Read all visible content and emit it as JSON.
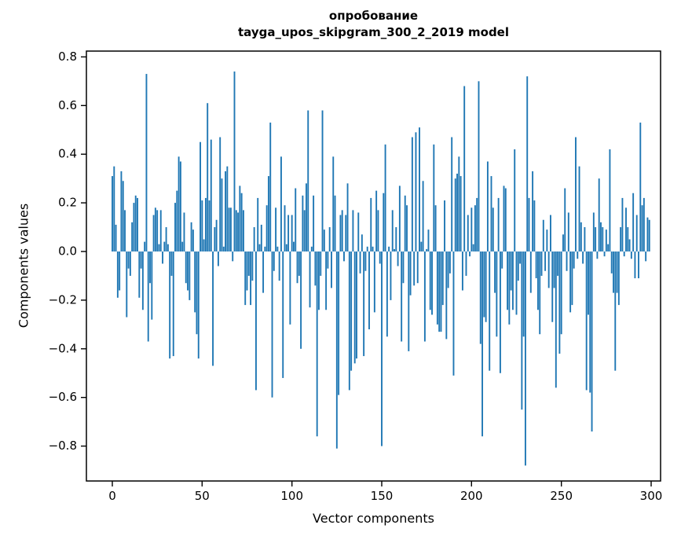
{
  "chart_data": {
    "type": "bar",
    "title_line1": "опробование",
    "title_line2": "tayga_upos_skipgram_300_2_2019 model",
    "xlabel": "Vector components",
    "ylabel": "Components values",
    "bar_color": "#1f77b4",
    "axis_color": "#000000",
    "xlim": [
      -15,
      305
    ],
    "ylim": [
      -0.94,
      0.83
    ],
    "grid": false,
    "legend": "none",
    "yticks": [
      0.8,
      0.6,
      0.4,
      0.2,
      0.0,
      -0.2,
      -0.4,
      -0.6,
      -0.8
    ],
    "ytick_labels": [
      "0.8",
      "0.6",
      "0.4",
      "0.2",
      "0.0",
      "−0.2",
      "−0.4",
      "−0.6",
      "−0.8"
    ],
    "xticks": [
      0,
      50,
      100,
      150,
      200,
      250,
      300
    ],
    "xtick_labels": [
      "0",
      "50",
      "100",
      "150",
      "200",
      "250",
      "300"
    ],
    "values": [
      0.31,
      0.35,
      0.11,
      -0.19,
      -0.16,
      0.33,
      0.29,
      0.17,
      -0.27,
      -0.07,
      -0.1,
      0.12,
      0.2,
      0.23,
      0.22,
      -0.19,
      -0.07,
      -0.24,
      0.04,
      0.73,
      -0.37,
      -0.13,
      -0.28,
      0.15,
      0.18,
      0.17,
      0.03,
      0.17,
      -0.05,
      0.04,
      0.1,
      0.03,
      -0.44,
      -0.1,
      -0.43,
      0.2,
      0.25,
      0.39,
      0.37,
      0.04,
      0.16,
      -0.13,
      -0.16,
      -0.2,
      0.12,
      0.09,
      -0.25,
      -0.34,
      -0.44,
      0.45,
      0.21,
      0.05,
      0.22,
      0.61,
      0.21,
      0.46,
      -0.47,
      0.1,
      0.13,
      -0.06,
      0.47,
      0.3,
      0.02,
      0.33,
      0.35,
      0.18,
      0.18,
      -0.04,
      0.74,
      0.17,
      0.16,
      0.27,
      0.24,
      0.17,
      -0.22,
      -0.16,
      -0.1,
      -0.22,
      -0.12,
      0.1,
      -0.57,
      0.22,
      0.03,
      0.11,
      -0.17,
      0.02,
      0.19,
      0.31,
      0.53,
      -0.6,
      -0.08,
      0.18,
      0.02,
      -0.12,
      0.39,
      -0.52,
      0.19,
      0.03,
      0.15,
      -0.3,
      0.15,
      0.04,
      0.26,
      -0.13,
      -0.1,
      -0.4,
      0.23,
      0.17,
      0.28,
      0.58,
      -0.23,
      0.02,
      0.23,
      -0.14,
      -0.76,
      -0.24,
      -0.1,
      0.58,
      0.09,
      -0.24,
      -0.07,
      0.1,
      -0.15,
      0.39,
      0.23,
      -0.81,
      -0.59,
      0.15,
      0.17,
      -0.04,
      0.15,
      0.28,
      -0.57,
      -0.49,
      0.17,
      -0.46,
      -0.44,
      0.16,
      -0.09,
      0.07,
      -0.43,
      -0.08,
      0.02,
      -0.32,
      0.22,
      0.02,
      -0.25,
      0.25,
      0.17,
      -0.05,
      -0.8,
      0.24,
      0.44,
      -0.35,
      0.02,
      -0.2,
      0.17,
      0.01,
      0.1,
      -0.06,
      0.27,
      -0.37,
      -0.13,
      0.23,
      0.19,
      -0.41,
      -0.18,
      0.47,
      -0.14,
      0.49,
      -0.13,
      0.51,
      0.04,
      0.29,
      -0.37,
      0.01,
      0.09,
      -0.24,
      -0.26,
      0.44,
      0.19,
      -0.3,
      -0.33,
      -0.33,
      -0.22,
      0.21,
      -0.36,
      -0.15,
      -0.09,
      0.47,
      -0.51,
      0.3,
      0.32,
      0.39,
      0.31,
      -0.16,
      0.68,
      -0.1,
      0.15,
      -0.02,
      0.18,
      0.03,
      0.19,
      0.22,
      0.7,
      -0.38,
      -0.76,
      -0.27,
      -0.29,
      0.37,
      -0.49,
      0.31,
      0.18,
      -0.17,
      -0.35,
      0.22,
      -0.5,
      -0.07,
      0.27,
      0.26,
      -0.24,
      -0.3,
      -0.16,
      -0.24,
      0.42,
      -0.26,
      -0.12,
      -0.05,
      -0.65,
      -0.35,
      -0.88,
      0.72,
      0.22,
      -0.17,
      0.33,
      0.21,
      -0.11,
      -0.24,
      -0.34,
      -0.1,
      0.13,
      -0.08,
      0.09,
      -0.15,
      0.15,
      -0.29,
      -0.15,
      -0.56,
      -0.1,
      -0.42,
      -0.34,
      0.07,
      0.26,
      -0.08,
      0.16,
      -0.25,
      -0.22,
      -0.07,
      0.47,
      -0.03,
      0.35,
      0.12,
      -0.05,
      0.1,
      -0.57,
      -0.26,
      -0.58,
      -0.74,
      0.16,
      0.1,
      -0.03,
      0.3,
      0.12,
      0.1,
      -0.02,
      0.09,
      0.03,
      0.42,
      -0.09,
      -0.17,
      -0.49,
      -0.17,
      -0.22,
      0.1,
      0.22,
      -0.02,
      0.18,
      0.1,
      0.05,
      -0.03,
      0.24,
      -0.11,
      0.15,
      -0.11,
      0.53,
      0.19,
      0.22,
      -0.04,
      0.14,
      0.13
    ]
  }
}
